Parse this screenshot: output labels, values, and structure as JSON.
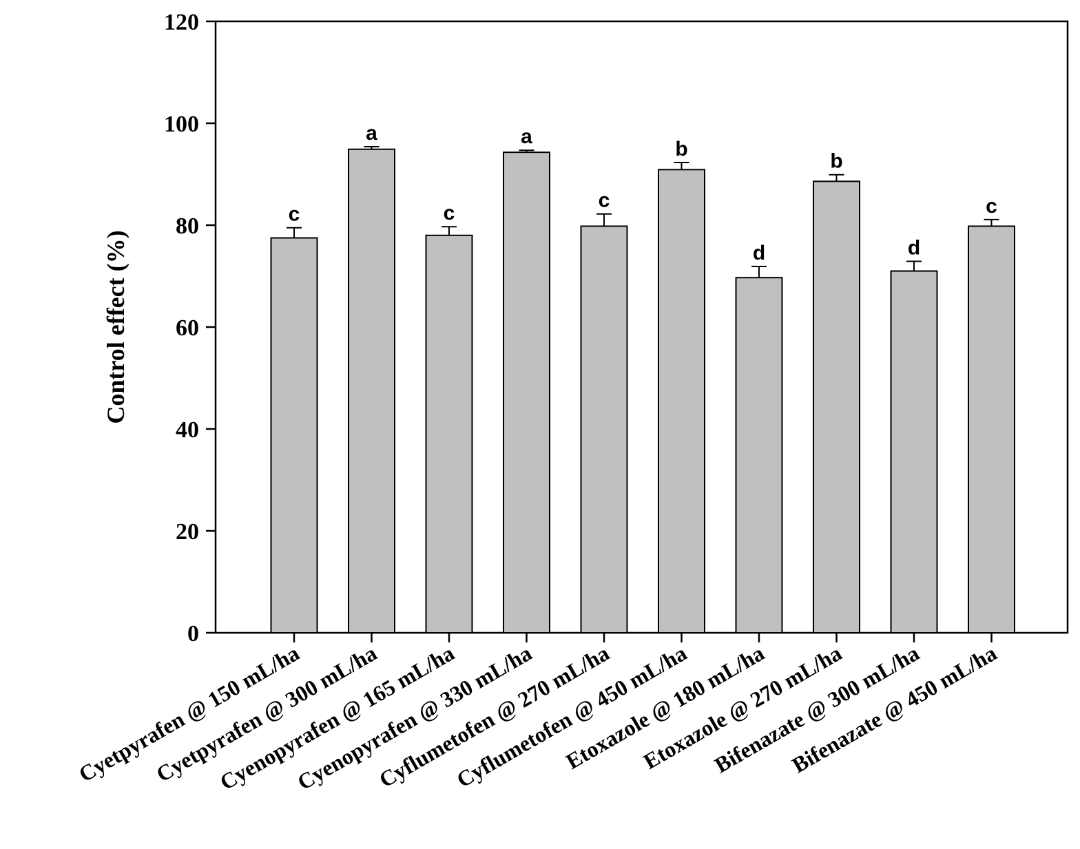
{
  "chart_data": {
    "type": "bar",
    "title": "",
    "xlabel": "",
    "ylabel": "Control effect (%)",
    "ylim": [
      0,
      120
    ],
    "yticks": [
      0,
      20,
      40,
      60,
      80,
      100,
      120
    ],
    "grid": false,
    "legend": "none",
    "bar_color": "#c0c0c0",
    "categories": [
      "Cyetpyrafen @ 150 mL/ha",
      "Cyetpyrafen @ 300 mL/ha",
      "Cyenopyrafen @ 165 mL/ha",
      "Cyenopyrafen @ 330 mL/ha",
      "Cyflumetofen @ 270 mL/ha",
      "Cyflumetofen @ 450 mL/ha",
      "Etoxazole @ 180 mL/ha",
      "Etoxazole @ 270 mL/ha",
      "Bifenazate @ 300 mL/ha",
      "Bifenazate @ 450 mL/ha"
    ],
    "values": [
      77.5,
      94.9,
      78.0,
      94.3,
      79.8,
      90.9,
      69.7,
      88.6,
      71.0,
      79.8
    ],
    "errors": [
      2.0,
      0.5,
      1.7,
      0.4,
      2.4,
      1.4,
      2.2,
      1.3,
      1.9,
      1.3
    ],
    "significance": [
      "c",
      "a",
      "c",
      "a",
      "c",
      "b",
      "d",
      "b",
      "d",
      "c"
    ]
  }
}
